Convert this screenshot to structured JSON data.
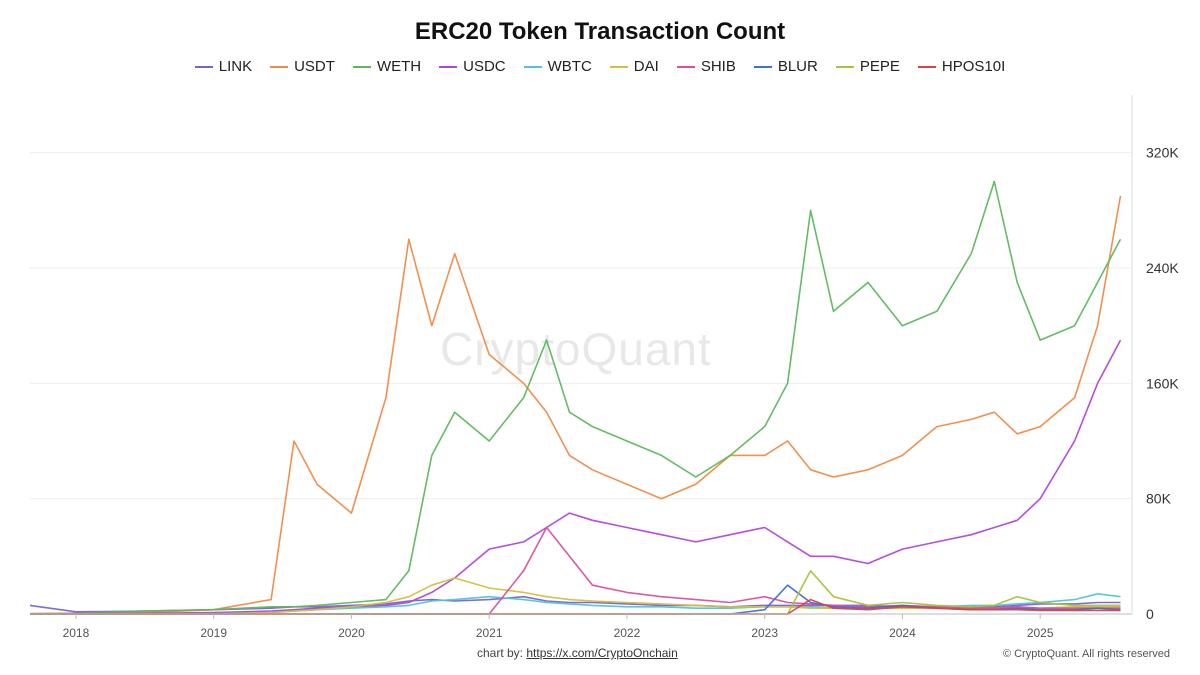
{
  "chart_data": {
    "type": "line",
    "title": "ERC20 Token Transaction Count",
    "xlabel": "",
    "ylabel": "",
    "x_ticks": [
      "2018",
      "2019",
      "2020",
      "2021",
      "2022",
      "2023",
      "2024",
      "2025"
    ],
    "y_ticks": [
      "0",
      "80K",
      "160K",
      "240K",
      "320K"
    ],
    "xlim": [
      "2017-09",
      "2025-09"
    ],
    "ylim": [
      0,
      360000
    ],
    "grid": true,
    "legend_position": "top",
    "y_axis_side": "right",
    "x": [
      "2017-09",
      "2018-01",
      "2018-07",
      "2019-01",
      "2019-06",
      "2019-08",
      "2019-10",
      "2020-01",
      "2020-04",
      "2020-06",
      "2020-08",
      "2020-10",
      "2021-01",
      "2021-04",
      "2021-06",
      "2021-08",
      "2021-10",
      "2022-01",
      "2022-04",
      "2022-07",
      "2022-10",
      "2023-01",
      "2023-03",
      "2023-05",
      "2023-07",
      "2023-10",
      "2024-01",
      "2024-04",
      "2024-07",
      "2024-09",
      "2024-11",
      "2025-01",
      "2025-04",
      "2025-06",
      "2025-08"
    ],
    "series": [
      {
        "name": "LINK",
        "color": "#7b61d9",
        "values": [
          6000,
          1500,
          2000,
          3000,
          4000,
          5000,
          5000,
          6000,
          7000,
          9000,
          10000,
          9000,
          10000,
          12000,
          9000,
          8000,
          8000,
          7000,
          6000,
          6000,
          5000,
          6000,
          6000,
          6000,
          6000,
          6000,
          5000,
          5000,
          5000,
          5000,
          6000,
          7000,
          7000,
          8000,
          8000
        ]
      },
      {
        "name": "USDT",
        "color": "#f08a45",
        "values": [
          200,
          500,
          1000,
          3000,
          10000,
          120000,
          90000,
          70000,
          150000,
          260000,
          200000,
          250000,
          180000,
          160000,
          140000,
          110000,
          100000,
          90000,
          80000,
          90000,
          110000,
          110000,
          120000,
          100000,
          95000,
          100000,
          110000,
          130000,
          135000,
          140000,
          125000,
          130000,
          150000,
          200000,
          290000
        ]
      },
      {
        "name": "WETH",
        "color": "#5cb85c",
        "values": [
          200,
          500,
          2000,
          3000,
          5000,
          5000,
          6000,
          8000,
          10000,
          30000,
          110000,
          140000,
          120000,
          150000,
          190000,
          140000,
          130000,
          120000,
          110000,
          95000,
          110000,
          130000,
          160000,
          280000,
          210000,
          230000,
          200000,
          210000,
          250000,
          300000,
          230000,
          190000,
          200000,
          230000,
          260000
        ]
      },
      {
        "name": "USDC",
        "color": "#b045d9",
        "values": [
          0,
          200,
          500,
          1000,
          2000,
          3000,
          4000,
          5000,
          6000,
          8000,
          15000,
          25000,
          45000,
          50000,
          60000,
          70000,
          65000,
          60000,
          55000,
          50000,
          55000,
          60000,
          50000,
          40000,
          40000,
          35000,
          45000,
          50000,
          55000,
          60000,
          65000,
          80000,
          120000,
          160000,
          190000
        ]
      },
      {
        "name": "WBTC",
        "color": "#4fc3d9",
        "values": [
          0,
          0,
          0,
          200,
          1000,
          2000,
          3000,
          4000,
          5000,
          6000,
          9000,
          10000,
          12000,
          10000,
          8000,
          7000,
          6000,
          5000,
          5000,
          4000,
          4000,
          5000,
          5000,
          5000,
          4000,
          4000,
          4000,
          5000,
          6000,
          6000,
          7000,
          8000,
          10000,
          14000,
          12000
        ]
      },
      {
        "name": "DAI",
        "color": "#d4c03a",
        "values": [
          0,
          0,
          0,
          0,
          1000,
          2000,
          3000,
          5000,
          8000,
          12000,
          20000,
          25000,
          18000,
          15000,
          12000,
          10000,
          9000,
          8000,
          7000,
          6000,
          5000,
          5000,
          5000,
          4000,
          4000,
          4000,
          4000,
          4000,
          4000,
          4000,
          4000,
          4000,
          5000,
          5000,
          5000
        ]
      },
      {
        "name": "SHIB",
        "color": "#d94fa0",
        "values": [
          0,
          0,
          0,
          0,
          0,
          0,
          0,
          0,
          0,
          0,
          0,
          0,
          0,
          30000,
          60000,
          40000,
          20000,
          15000,
          12000,
          10000,
          8000,
          12000,
          8000,
          7000,
          6000,
          5000,
          6000,
          5000,
          4000,
          4000,
          5000,
          4000,
          4000,
          4000,
          4000
        ]
      },
      {
        "name": "BLUR",
        "color": "#3f6fd9",
        "values": [
          0,
          0,
          0,
          0,
          0,
          0,
          0,
          0,
          0,
          0,
          0,
          0,
          0,
          0,
          0,
          0,
          0,
          0,
          0,
          0,
          0,
          3000,
          20000,
          8000,
          5000,
          4000,
          6000,
          4000,
          3000,
          3000,
          4000,
          3000,
          3000,
          4000,
          3000
        ]
      },
      {
        "name": "PEPE",
        "color": "#a8c23a",
        "values": [
          0,
          0,
          0,
          0,
          0,
          0,
          0,
          0,
          0,
          0,
          0,
          0,
          0,
          0,
          0,
          0,
          0,
          0,
          0,
          0,
          0,
          0,
          0,
          30000,
          12000,
          6000,
          8000,
          6000,
          5000,
          6000,
          12000,
          8000,
          6000,
          6000,
          6000
        ]
      },
      {
        "name": "HPOS10I",
        "color": "#d9433f",
        "values": [
          0,
          0,
          0,
          0,
          0,
          0,
          0,
          0,
          0,
          0,
          0,
          0,
          0,
          0,
          0,
          0,
          0,
          0,
          0,
          0,
          0,
          0,
          0,
          10000,
          4000,
          3000,
          5000,
          4000,
          3000,
          3000,
          3000,
          2500,
          2500,
          2500,
          2500
        ]
      }
    ]
  },
  "credit": {
    "prefix": "chart by: ",
    "link_text": "https://x.com/CryptoOnchain",
    "copyright": "© CryptoQuant. All rights reserved"
  },
  "watermark": "CryptoQuant"
}
